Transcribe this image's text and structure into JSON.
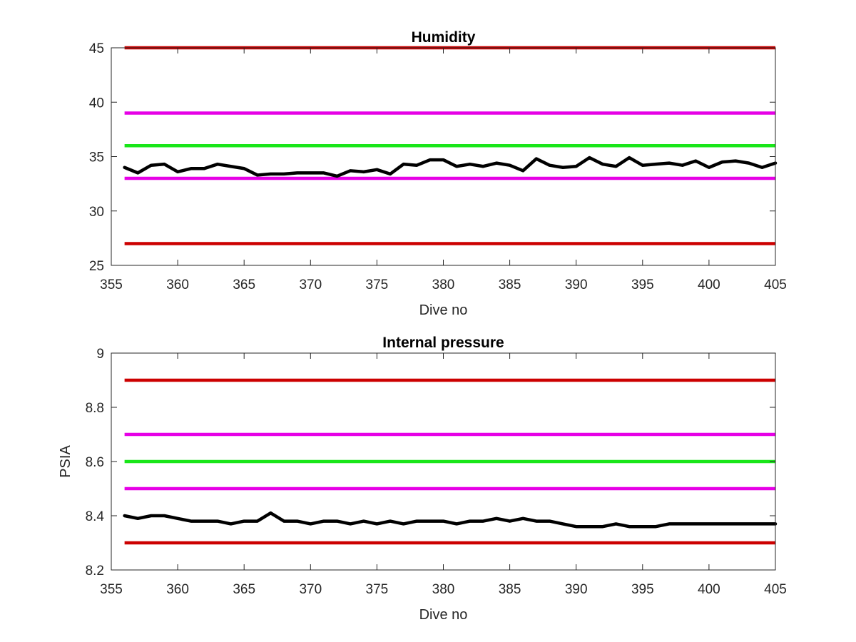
{
  "chart_data": [
    {
      "type": "line",
      "title": "Humidity",
      "xlabel": "Dive no",
      "ylabel": "",
      "xlim": [
        355,
        405
      ],
      "ylim": [
        25,
        45
      ],
      "xticks": [
        355,
        360,
        365,
        370,
        375,
        380,
        385,
        390,
        395,
        400,
        405
      ],
      "yticks": [
        25,
        30,
        35,
        40,
        45
      ],
      "grid": false,
      "legend": "none",
      "thresholds": [
        {
          "value": 45,
          "color": "#cc0000"
        },
        {
          "value": 39,
          "color": "#e600e6"
        },
        {
          "value": 36,
          "color": "#19e619"
        },
        {
          "value": 33,
          "color": "#e600e6"
        },
        {
          "value": 27,
          "color": "#cc0000"
        }
      ],
      "series": [
        {
          "color": "#000000",
          "x": [
            356,
            357,
            358,
            359,
            360,
            361,
            362,
            363,
            364,
            365,
            366,
            367,
            368,
            369,
            370,
            371,
            372,
            373,
            374,
            375,
            376,
            377,
            378,
            379,
            380,
            381,
            382,
            383,
            384,
            385,
            386,
            387,
            388,
            389,
            390,
            391,
            392,
            393,
            394,
            395,
            396,
            397,
            398,
            399,
            400,
            401,
            402,
            403,
            404,
            405
          ],
          "values": [
            34.0,
            33.5,
            34.2,
            34.3,
            33.6,
            33.9,
            33.9,
            34.3,
            34.1,
            33.9,
            33.3,
            33.4,
            33.4,
            33.5,
            33.5,
            33.5,
            33.2,
            33.7,
            33.6,
            33.8,
            33.4,
            34.3,
            34.2,
            34.7,
            34.7,
            34.1,
            34.3,
            34.1,
            34.4,
            34.2,
            33.7,
            34.8,
            34.2,
            34.0,
            34.1,
            34.9,
            34.3,
            34.1,
            34.9,
            34.2,
            34.3,
            34.4,
            34.2,
            34.6,
            34.0,
            34.5,
            34.6,
            34.4,
            34.0,
            34.4
          ]
        }
      ]
    },
    {
      "type": "line",
      "title": "Internal pressure",
      "xlabel": "Dive no",
      "ylabel": "PSIA",
      "xlim": [
        355,
        405
      ],
      "ylim": [
        8.2,
        9
      ],
      "xticks": [
        355,
        360,
        365,
        370,
        375,
        380,
        385,
        390,
        395,
        400,
        405
      ],
      "yticks": [
        8.2,
        8.4,
        8.6,
        8.8,
        9
      ],
      "grid": false,
      "legend": "none",
      "thresholds": [
        {
          "value": 8.9,
          "color": "#cc0000"
        },
        {
          "value": 8.7,
          "color": "#e600e6"
        },
        {
          "value": 8.6,
          "color": "#19e619"
        },
        {
          "value": 8.5,
          "color": "#e600e6"
        },
        {
          "value": 8.3,
          "color": "#cc0000"
        }
      ],
      "series": [
        {
          "color": "#000000",
          "x": [
            356,
            357,
            358,
            359,
            360,
            361,
            362,
            363,
            364,
            365,
            366,
            367,
            368,
            369,
            370,
            371,
            372,
            373,
            374,
            375,
            376,
            377,
            378,
            379,
            380,
            381,
            382,
            383,
            384,
            385,
            386,
            387,
            388,
            389,
            390,
            391,
            392,
            393,
            394,
            395,
            396,
            397,
            398,
            399,
            400,
            401,
            402,
            403,
            404,
            405
          ],
          "values": [
            8.4,
            8.39,
            8.4,
            8.4,
            8.39,
            8.38,
            8.38,
            8.38,
            8.37,
            8.38,
            8.38,
            8.41,
            8.38,
            8.38,
            8.37,
            8.38,
            8.38,
            8.37,
            8.38,
            8.37,
            8.38,
            8.37,
            8.38,
            8.38,
            8.38,
            8.37,
            8.38,
            8.38,
            8.39,
            8.38,
            8.39,
            8.38,
            8.38,
            8.37,
            8.36,
            8.36,
            8.36,
            8.37,
            8.36,
            8.36,
            8.36,
            8.37,
            8.37,
            8.37,
            8.37,
            8.37,
            8.37,
            8.37,
            8.37,
            8.37
          ]
        }
      ]
    }
  ]
}
